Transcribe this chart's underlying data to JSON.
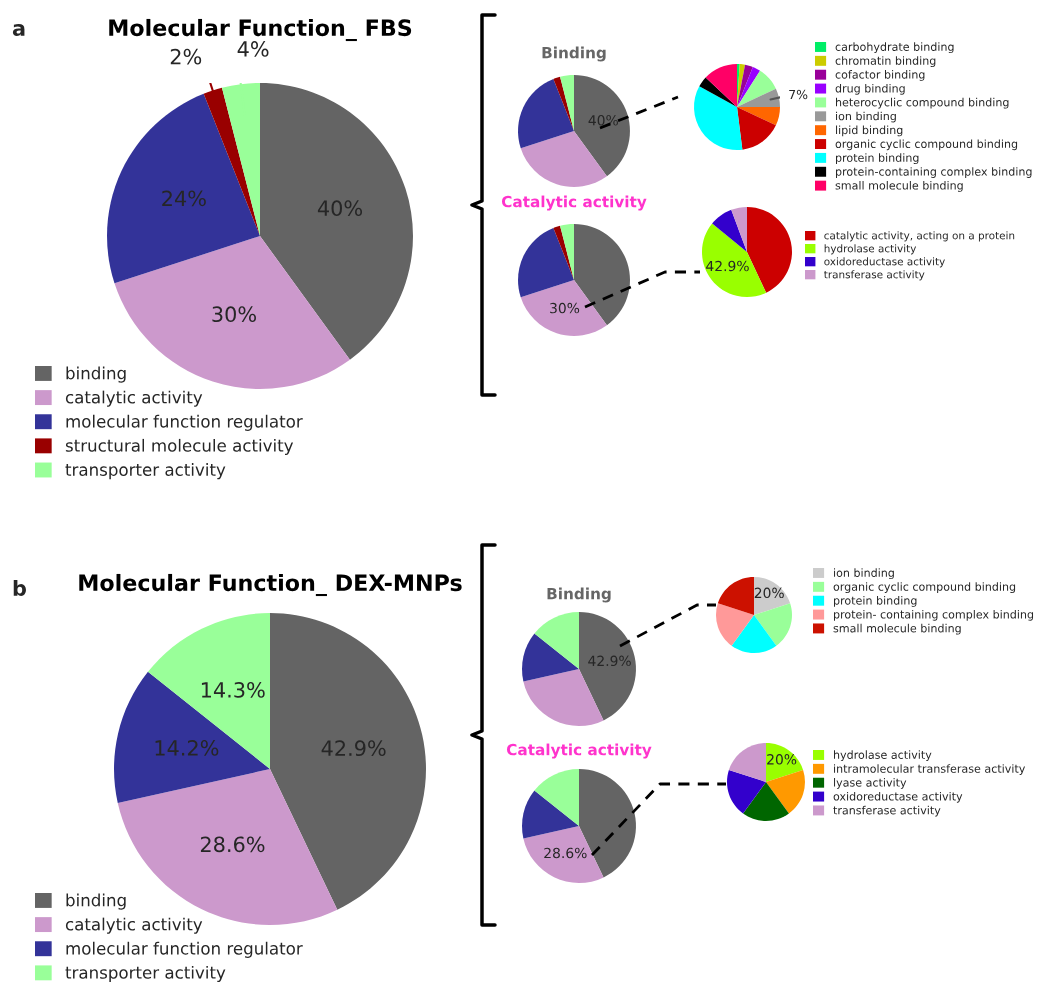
{
  "chart_data": [
    {
      "type": "pie",
      "title": "Molecular Function_ FBS",
      "annotations": [
        "a"
      ],
      "categories": [
        "binding",
        "catalytic activity",
        "molecular function regulator",
        "structural molecule activity",
        "transporter activity"
      ],
      "values": [
        40,
        30,
        24,
        2,
        4
      ],
      "colors": [
        "#646464",
        "#cc99cc",
        "#333399",
        "#990000",
        "#99ff99"
      ],
      "value_labels": [
        "40%",
        "30%",
        "24%",
        "2%",
        "4%"
      ],
      "legend": "bottom"
    },
    {
      "type": "pie",
      "title": "Binding",
      "categories": [
        null,
        null,
        null,
        null,
        null
      ],
      "values": [
        40,
        30,
        24,
        2,
        4
      ],
      "colors": [
        "#646464",
        "#cc99cc",
        "#333399",
        "#990000",
        "#99ff99"
      ],
      "value_labels": [
        "40%",
        null,
        null,
        null,
        null
      ]
    },
    {
      "type": "pie",
      "categories": [
        "carbohydrate binding",
        "chromatin binding",
        "cofactor binding",
        "drug binding",
        "heterocyclic compound binding",
        "ion binding",
        "lipid binding",
        "organic cyclic compound binding",
        "protein binding",
        "protein-containing complex binding",
        "small molecule binding"
      ],
      "values": [
        1,
        2,
        3,
        3,
        9,
        7,
        7,
        16,
        35,
        4,
        13
      ],
      "colors": [
        "#00ee66",
        "#cccc00",
        "#990099",
        "#9900ff",
        "#99ff99",
        "#999999",
        "#ff6600",
        "#cc0000",
        "#00ffff",
        "#000000",
        "#ff0066"
      ],
      "value_labels": [
        null,
        null,
        null,
        null,
        null,
        "7%",
        null,
        null,
        null,
        null,
        null
      ],
      "legend": "right"
    },
    {
      "type": "pie",
      "title": "Catalytic activity",
      "categories": [
        null,
        null,
        null,
        null,
        null
      ],
      "values": [
        40,
        30,
        24,
        2,
        4
      ],
      "colors": [
        "#646464",
        "#cc99cc",
        "#333399",
        "#990000",
        "#99ff99"
      ],
      "value_labels": [
        null,
        "30%",
        null,
        null,
        null
      ]
    },
    {
      "type": "pie",
      "categories": [
        "catalytic activity, acting on a protein",
        "hydrolase activity",
        "oxidoreductase activity",
        "transferase activity"
      ],
      "values": [
        43,
        42.9,
        8.4,
        5.7
      ],
      "colors": [
        "#cc0000",
        "#99ff00",
        "#3300cc",
        "#cc99cc"
      ],
      "value_labels": [
        null,
        "42.9%",
        null,
        null
      ],
      "legend": "right"
    },
    {
      "type": "pie",
      "title": "Molecular Function_ DEX-MNPs",
      "annotations": [
        "b"
      ],
      "categories": [
        "binding",
        "catalytic activity",
        "molecular function regulator",
        "transporter activity"
      ],
      "values": [
        42.9,
        28.6,
        14.2,
        14.3
      ],
      "colors": [
        "#646464",
        "#cc99cc",
        "#333399",
        "#99ff99"
      ],
      "value_labels": [
        "42.9%",
        "28.6%",
        "14.2%",
        "14.3%"
      ],
      "legend": "bottom"
    },
    {
      "type": "pie",
      "title": "Binding",
      "categories": [
        null,
        null,
        null,
        null
      ],
      "values": [
        42.9,
        28.6,
        14.2,
        14.3
      ],
      "colors": [
        "#646464",
        "#cc99cc",
        "#333399",
        "#99ff99"
      ],
      "value_labels": [
        "42.9%",
        null,
        null,
        null
      ]
    },
    {
      "type": "pie",
      "categories": [
        "ion binding",
        "organic cyclic compound binding",
        "protein binding",
        "protein- containing complex binding",
        "small molecule binding"
      ],
      "values": [
        20,
        20,
        20,
        20,
        20
      ],
      "colors": [
        "#cccccc",
        "#99ff99",
        "#00ffff",
        "#ff9999",
        "#cc1100"
      ],
      "value_labels": [
        "20%",
        null,
        null,
        null,
        null
      ],
      "legend": "right"
    },
    {
      "type": "pie",
      "title": "Catalytic activity",
      "categories": [
        null,
        null,
        null,
        null
      ],
      "values": [
        42.9,
        28.6,
        14.2,
        14.3
      ],
      "colors": [
        "#646464",
        "#cc99cc",
        "#333399",
        "#99ff99"
      ],
      "value_labels": [
        null,
        "28.6%",
        null,
        null
      ]
    },
    {
      "type": "pie",
      "categories": [
        "hydrolase activity",
        "intramolecular transferase activity",
        "lyase activity",
        "oxidoreductase activity",
        "transferase activity"
      ],
      "values": [
        20,
        20,
        20,
        20,
        20
      ],
      "colors": [
        "#99ff00",
        "#ff9900",
        "#006600",
        "#3300cc",
        "#cc99cc"
      ],
      "value_labels": [
        "20%",
        null,
        null,
        null,
        null
      ],
      "legend": "right"
    }
  ]
}
